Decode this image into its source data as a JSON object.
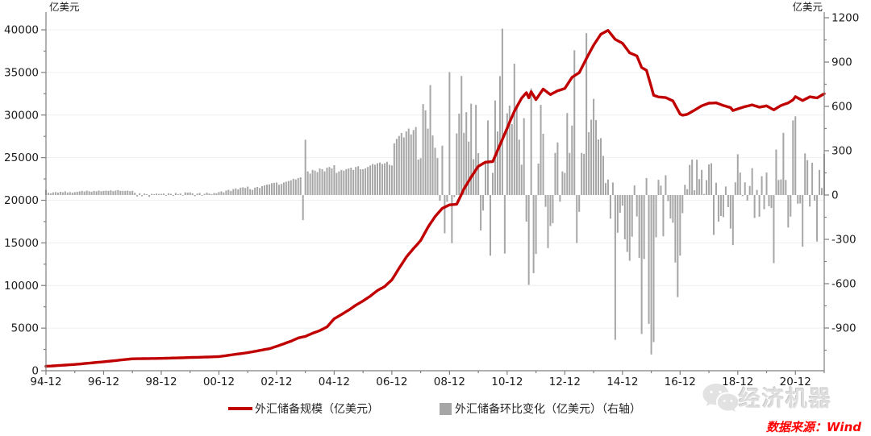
{
  "chart_data": {
    "type": "line+bar",
    "title": "",
    "x_unit": "month",
    "x_start": "94-12",
    "x_end": "21-12",
    "x_tick_labels": [
      "94-12",
      "96-12",
      "98-12",
      "00-12",
      "02-12",
      "04-12",
      "06-12",
      "08-12",
      "10-12",
      "12-12",
      "14-12",
      "16-12",
      "18-12",
      "20-12"
    ],
    "left_axis": {
      "title": "亿美元",
      "min": 0,
      "max": 40000,
      "step": 5000,
      "tick_labels": [
        0,
        5000,
        10000,
        15000,
        20000,
        25000,
        30000,
        35000,
        40000
      ]
    },
    "right_axis": {
      "title": "亿美元",
      "min": -1200,
      "max": 1200,
      "step": 300,
      "tick_labels": [
        1200,
        900,
        600,
        300,
        0,
        -300,
        -600,
        -900
      ]
    },
    "grid": "horizontal-light",
    "legend_position": "bottom",
    "series": [
      {
        "name": "外汇储备规模（亿美元）",
        "type": "line",
        "axis": "left",
        "color": "#c00000",
        "anchors_month_value": [
          [
            0,
            516
          ],
          [
            12,
            736
          ],
          [
            24,
            1050
          ],
          [
            36,
            1399
          ],
          [
            48,
            1450
          ],
          [
            60,
            1547
          ],
          [
            72,
            1656
          ],
          [
            84,
            2122
          ],
          [
            87,
            2276
          ],
          [
            93,
            2586
          ],
          [
            96,
            2864
          ],
          [
            99,
            3160
          ],
          [
            102,
            3465
          ],
          [
            105,
            3839
          ],
          [
            108,
            4033
          ],
          [
            111,
            4398
          ],
          [
            114,
            4706
          ],
          [
            117,
            5145
          ],
          [
            120,
            6099
          ],
          [
            123,
            6591
          ],
          [
            126,
            7110
          ],
          [
            129,
            7690
          ],
          [
            132,
            8189
          ],
          [
            135,
            8751
          ],
          [
            138,
            9411
          ],
          [
            141,
            9879
          ],
          [
            144,
            10663
          ],
          [
            147,
            12020
          ],
          [
            150,
            13326
          ],
          [
            153,
            14336
          ],
          [
            156,
            15282
          ],
          [
            159,
            16822
          ],
          [
            162,
            18088
          ],
          [
            165,
            19056
          ],
          [
            168,
            19460
          ],
          [
            171,
            19537
          ],
          [
            174,
            21316
          ],
          [
            177,
            22726
          ],
          [
            180,
            23992
          ],
          [
            183,
            24471
          ],
          [
            186,
            24543
          ],
          [
            189,
            26483
          ],
          [
            192,
            28473
          ],
          [
            195,
            30447
          ],
          [
            198,
            31975
          ],
          [
            200,
            32625
          ],
          [
            201,
            32017
          ],
          [
            202,
            32738
          ],
          [
            204,
            31811
          ],
          [
            207,
            33049
          ],
          [
            210,
            32400
          ],
          [
            213,
            32851
          ],
          [
            216,
            33116
          ],
          [
            219,
            34426
          ],
          [
            222,
            34967
          ],
          [
            225,
            36627
          ],
          [
            228,
            38213
          ],
          [
            231,
            39481
          ],
          [
            234,
            39932
          ],
          [
            237,
            38877
          ],
          [
            240,
            38430
          ],
          [
            243,
            37300
          ],
          [
            246,
            36938
          ],
          [
            248,
            35573
          ],
          [
            250,
            35255
          ],
          [
            252,
            33304
          ],
          [
            253,
            32309
          ],
          [
            255,
            32126
          ],
          [
            258,
            32052
          ],
          [
            261,
            31664
          ],
          [
            264,
            30105
          ],
          [
            265,
            29982
          ],
          [
            267,
            30091
          ],
          [
            270,
            30568
          ],
          [
            273,
            31085
          ],
          [
            276,
            31399
          ],
          [
            279,
            31428
          ],
          [
            282,
            31121
          ],
          [
            285,
            30870
          ],
          [
            286,
            30531
          ],
          [
            288,
            30727
          ],
          [
            291,
            30988
          ],
          [
            294,
            31192
          ],
          [
            297,
            30924
          ],
          [
            300,
            31079
          ],
          [
            303,
            30606
          ],
          [
            306,
            31123
          ],
          [
            309,
            31426
          ],
          [
            311,
            31785
          ],
          [
            312,
            32165
          ],
          [
            315,
            31700
          ],
          [
            318,
            32140
          ],
          [
            321,
            32006
          ],
          [
            324,
            32502
          ]
        ]
      },
      {
        "name": "外汇储备环比变化（亿美元）（右轴）",
        "type": "bar",
        "axis": "right",
        "color": "#a6a6a6",
        "monthly_values": [
          35,
          15,
          12,
          18,
          20,
          16,
          22,
          19,
          25,
          17,
          20,
          16,
          20,
          22,
          25,
          28,
          24,
          30,
          26,
          22,
          28,
          25,
          30,
          26,
          28,
          30,
          28,
          32,
          26,
          30,
          34,
          28,
          28,
          28,
          30,
          26,
          29,
          15,
          -10,
          12,
          -8,
          10,
          6,
          -12,
          8,
          5,
          10,
          7,
          8,
          10,
          -5,
          12,
          8,
          -6,
          14,
          6,
          10,
          -4,
          18,
          16,
          18,
          12,
          -8,
          10,
          14,
          -5,
          8,
          16,
          10,
          6,
          14,
          12,
          20,
          25,
          18,
          30,
          35,
          28,
          40,
          45,
          38,
          50,
          52,
          48,
          57,
          40,
          35,
          50,
          55,
          48,
          60,
          65,
          70,
          72,
          80,
          82,
          85,
          70,
          75,
          85,
          90,
          95,
          100,
          110,
          105,
          115,
          120,
          -170,
          374,
          160,
          145,
          170,
          165,
          155,
          180,
          175,
          160,
          185,
          190,
          180,
          202,
          150,
          160,
          170,
          165,
          175,
          180,
          185,
          170,
          190,
          195,
          175,
          174,
          180,
          190,
          200,
          210,
          205,
          215,
          220,
          210,
          215,
          225,
          205,
          200,
          350,
          380,
          400,
          420,
          390,
          430,
          450,
          410,
          440,
          460,
          240,
          249,
          616,
          573,
          450,
          744,
          403,
          320,
          250,
          -39,
          334,
          -259,
          -46,
          832,
          -326,
          -14,
          417,
          551,
          806,
          421,
          561,
          362,
          618,
          243,
          610,
          283,
          -240,
          -105,
          223,
          505,
          -410,
          150,
          640,
          430,
          805,
          1126,
          -396,
          553,
          605,
          480,
          889,
          610,
          375,
          205,
          520,
          -180,
          -608,
          721,
          -529,
          -399,
          213,
          610,
          415,
          -80,
          -359,
          -210,
          -190,
          285,
          356,
          -45,
          160,
          150,
          555,
          285,
          470,
          980,
          -325,
          -114,
          285,
          279,
          1096,
          425,
          510,
          651,
          507,
          376,
          385,
          265,
          81,
          105,
          -160,
          85,
          -980,
          -255,
          -120,
          -72,
          -300,
          -385,
          -445,
          -282,
          65,
          -145,
          -425,
          -940,
          -433,
          115,
          -872,
          -1079,
          -995,
          -286,
          103,
          64,
          -279,
          134,
          -41,
          -159,
          -188,
          -457,
          -691,
          -410,
          -123,
          69,
          40,
          204,
          240,
          32,
          239,
          108,
          170,
          7,
          101,
          207,
          215,
          -270,
          83,
          -180,
          -142,
          -150,
          58,
          -82,
          -227,
          -339,
          86,
          276,
          152,
          -7,
          86,
          -38,
          61,
          182,
          -155,
          35,
          -147,
          127,
          -96,
          152,
          -76,
          -88,
          -461,
          308,
          102,
          106,
          421,
          102,
          -220,
          -146,
          505,
          533,
          -59,
          -57,
          -350,
          282,
          236,
          -78,
          219,
          -38,
          -315,
          170,
          48,
          279
        ]
      }
    ]
  },
  "legend": [
    {
      "label": "外汇储备规模（亿美元）",
      "marker": "line",
      "color": "#c00000"
    },
    {
      "label": "外汇储备环比变化（亿美元）（右轴）",
      "marker": "square",
      "color": "#a6a6a6"
    }
  ],
  "watermark": {
    "text": "经济机器",
    "icon": "wechat-icon"
  },
  "source": {
    "text": "数据来源：Wind",
    "color": "#ff0000"
  }
}
